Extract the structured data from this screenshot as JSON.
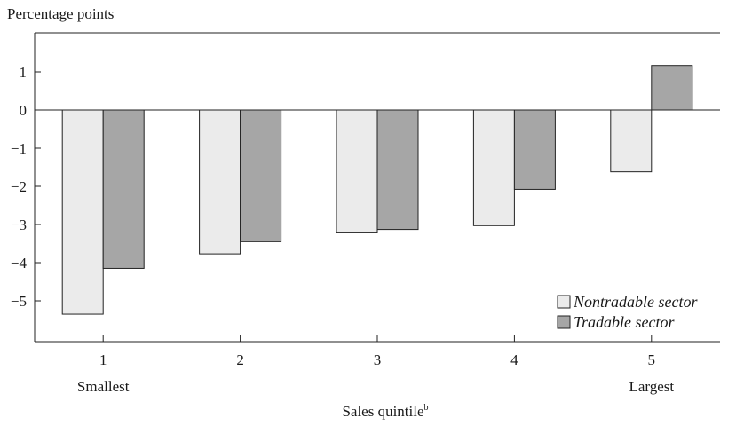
{
  "chart_data": {
    "type": "bar",
    "ylabel": "Percentage points",
    "xlabel": "Sales quintile",
    "xlabel_superscript": "b",
    "categories": [
      "1",
      "2",
      "3",
      "4",
      "5"
    ],
    "category_sublabels": [
      "Smallest",
      "",
      "",
      "",
      "Largest"
    ],
    "ylim": [
      -6,
      2
    ],
    "yticks": [
      "1",
      "0",
      "−1",
      "−2",
      "−3",
      "−4",
      "−5"
    ],
    "ytick_values": [
      1,
      0,
      -1,
      -2,
      -3,
      -4,
      -5
    ],
    "series": [
      {
        "name": "Nontradable sector",
        "color": "#ebebeb",
        "values": [
          -5.35,
          -3.77,
          -3.2,
          -3.03,
          -1.62
        ]
      },
      {
        "name": "Tradable sector",
        "color": "#a6a6a6",
        "values": [
          -4.15,
          -3.45,
          -3.13,
          -2.08,
          1.17
        ]
      }
    ],
    "legend_position": "bottom-right",
    "grid": false
  }
}
